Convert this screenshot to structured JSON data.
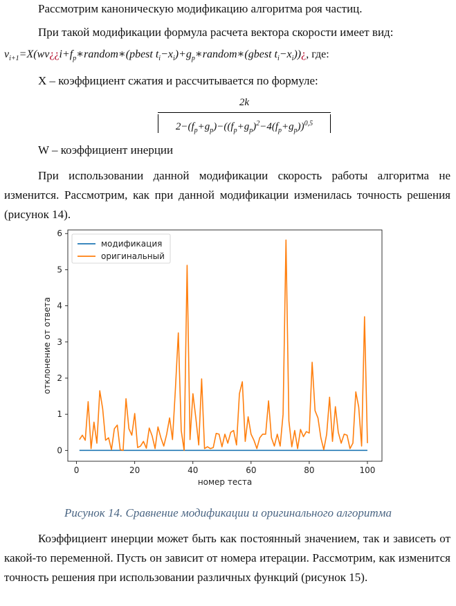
{
  "text": {
    "p1": "Рассмотрим каноническую модификацию алгоритма роя частиц.",
    "p2": "При такой модификации формула расчета вектора скорости имеет вид:",
    "formula": {
      "lhs": "v",
      "lhs_sub": "i+1",
      "eq": "=X(",
      "part1": "wv",
      "q1": "¿¿",
      "part2": "i+f",
      "fp_sub": "p",
      "part3": "∗random∗(pbest t",
      "ti_sub": "i",
      "part4": "−x",
      "xi_sub": "i",
      "part5": ")+g",
      "gp_sub": "p",
      "part6": "∗random∗(gbest t",
      "ti2_sub": "i",
      "part7": "−x",
      "xi2_sub": "i",
      "part8": "))",
      "q2": "¿",
      "tail": ", где:"
    },
    "p3": "X – коэффициент сжатия и рассчитывается по формуле:",
    "fraction": {
      "numerator": "2k",
      "den_a": "2−(f",
      "den_b": "+g",
      "den_c": ")−((f",
      "den_d": "+g",
      "den_e": ")",
      "den_f": "−4(f",
      "den_g": "+g",
      "den_h": "))",
      "sub_p": "p",
      "sup_2": "2",
      "sup_05": "0,5"
    },
    "p4": "W – коэффициент инерции",
    "p5": "При использовании данной модификации скорость работы алгоритма не изменится. Рассмотрим, как при данной модификации изменилась точность решения (рисунок 14).",
    "caption": "Рисунок 14. Сравнение модификации и оригинального алгоритма",
    "p6": "Коэффициент инерции может быть как постоянный значением, так и зависеть от какой-то переменной. Пусть он зависит от номера итерации. Рассмотрим, как изменится точность решения при использовании различных функций (рисунок 15)."
  },
  "chart_data": {
    "type": "line",
    "xlabel": "номер теста",
    "ylabel": "отклонение от ответа",
    "xlim": [
      -3,
      105
    ],
    "ylim": [
      -0.3,
      6.1
    ],
    "xticks": [
      0,
      20,
      40,
      60,
      80,
      100
    ],
    "yticks": [
      0,
      1,
      2,
      3,
      4,
      5,
      6
    ],
    "grid": false,
    "legend": "top-left",
    "series": [
      {
        "name": "модификация",
        "color": "#1f77b4",
        "x": [
          1,
          100
        ],
        "values": [
          0,
          0
        ]
      },
      {
        "name": "оригинальный",
        "color": "#ff7f0e",
        "x": [
          1,
          2,
          3,
          4,
          5,
          6,
          7,
          8,
          9,
          10,
          11,
          12,
          13,
          14,
          15,
          16,
          17,
          18,
          19,
          20,
          21,
          22,
          23,
          24,
          25,
          26,
          27,
          28,
          29,
          30,
          31,
          32,
          33,
          34,
          35,
          36,
          37,
          38,
          39,
          40,
          41,
          42,
          43,
          44,
          45,
          46,
          47,
          48,
          49,
          50,
          51,
          52,
          53,
          54,
          55,
          56,
          57,
          58,
          59,
          60,
          61,
          62,
          63,
          64,
          65,
          66,
          67,
          68,
          69,
          70,
          71,
          72,
          73,
          74,
          75,
          76,
          77,
          78,
          79,
          80,
          81,
          82,
          83,
          84,
          85,
          86,
          87,
          88,
          89,
          90,
          91,
          92,
          93,
          94,
          95,
          96,
          97,
          98,
          99,
          100
        ],
        "values": [
          0.3,
          0.42,
          0.28,
          1.35,
          0.05,
          0.78,
          0.2,
          1.65,
          1.15,
          0.28,
          0.35,
          0.02,
          0.6,
          0.7,
          0.02,
          0.0,
          1.43,
          0.6,
          0.42,
          1.02,
          0.08,
          0.12,
          0.25,
          0.06,
          0.62,
          0.4,
          0.05,
          0.65,
          0.35,
          0.12,
          0.45,
          0.9,
          0.3,
          1.7,
          3.25,
          0.55,
          0.0,
          5.12,
          0.3,
          1.57,
          0.9,
          0.15,
          1.98,
          0.05,
          0.1,
          0.05,
          0.08,
          0.47,
          0.45,
          0.1,
          0.45,
          0.2,
          0.5,
          0.55,
          0.15,
          1.57,
          1.9,
          0.25,
          0.93,
          0.45,
          0.28,
          0.05,
          0.35,
          0.45,
          0.45,
          1.37,
          0.35,
          0.12,
          0.45,
          0.12,
          1.0,
          5.82,
          0.82,
          0.1,
          0.55,
          0.05,
          0.58,
          0.38,
          0.52,
          0.48,
          2.44,
          1.1,
          0.9,
          0.35,
          0.02,
          0.45,
          1.47,
          0.25,
          1.21,
          0.5,
          0.2,
          0.45,
          0.42,
          0.05,
          0.2,
          1.62,
          1.2,
          0.12,
          3.7,
          0.2
        ]
      }
    ]
  }
}
